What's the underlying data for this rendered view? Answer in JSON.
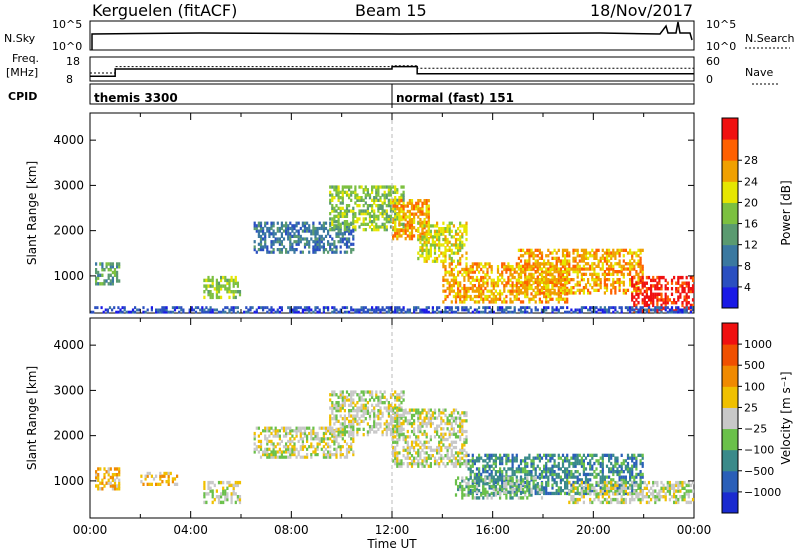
{
  "header": {
    "station": "Kerguelen (fitACF)",
    "beam": "Beam 15",
    "date": "18/Nov/2017"
  },
  "top_panels": {
    "nsky": {
      "left_label": "N.Sky",
      "ticks": [
        "10^5",
        "10^0"
      ],
      "right_label": "N.Search",
      "right_ticks": [
        "10^5",
        "10^0"
      ]
    },
    "freq": {
      "left_label_1": "Freq.",
      "left_label_2": "[MHz]",
      "ticks": [
        "18",
        "8"
      ],
      "right_label": "Nave",
      "right_ticks": [
        "60",
        "0"
      ],
      "series": [
        {
          "x": [
            0,
            1.0,
            1.0,
            12.0,
            12.0,
            13.0,
            13.0,
            24.0
          ],
          "y": [
            10,
            10,
            13,
            13,
            14,
            14,
            11,
            11
          ]
        }
      ],
      "nave_series": [
        {
          "x": [
            0,
            1.0,
            1.0,
            12.0,
            12.0,
            13.0,
            13.0,
            24.0
          ],
          "y": [
            20,
            20,
            36,
            36,
            38,
            38,
            32,
            32
          ]
        }
      ]
    },
    "cpid": {
      "label": "CPID",
      "segments": [
        {
          "start": 0,
          "label": "themis 3300"
        },
        {
          "start": 12.0,
          "label": "normal (fast) 151"
        }
      ]
    }
  },
  "chart_data": [
    {
      "type": "heatmap",
      "quantity": "power",
      "ylabel": "Slant Range [km]",
      "xlim": [
        0,
        24
      ],
      "ylim": [
        180,
        4600
      ],
      "yticks": [
        1000,
        2000,
        3000,
        4000
      ],
      "colorbar": {
        "label": "Power [dB]",
        "ticks": [
          "4",
          "8",
          "12",
          "16",
          "20",
          "24",
          "28"
        ],
        "colors": [
          "#1a1ae6",
          "#2a4fc0",
          "#3a78a0",
          "#5a9a70",
          "#7cc040",
          "#e6e600",
          "#f0a000",
          "#ff6000",
          "#f01010"
        ]
      },
      "regions": [
        {
          "t0": 0.2,
          "t1": 1.2,
          "r0": 800,
          "r1": 1300,
          "level": 3
        },
        {
          "t0": 4.5,
          "t1": 6.0,
          "r0": 500,
          "r1": 1000,
          "level": 4
        },
        {
          "t0": 6.5,
          "t1": 10.5,
          "r0": 1500,
          "r1": 2200,
          "level": 2
        },
        {
          "t0": 9.5,
          "t1": 12.5,
          "r0": 2000,
          "r1": 3000,
          "level": 4
        },
        {
          "t0": 12.0,
          "t1": 13.5,
          "r0": 1800,
          "r1": 2700,
          "level": 6
        },
        {
          "t0": 13.0,
          "t1": 15.0,
          "r0": 1300,
          "r1": 2200,
          "level": 5
        },
        {
          "t0": 14.0,
          "t1": 19.0,
          "r0": 400,
          "r1": 1300,
          "level": 6
        },
        {
          "t0": 17.0,
          "t1": 22.0,
          "r0": 600,
          "r1": 1600,
          "level": 6
        },
        {
          "t0": 21.5,
          "t1": 24.0,
          "r0": 200,
          "r1": 1000,
          "level": 8
        },
        {
          "t0": 0.0,
          "t1": 24.0,
          "r0": 180,
          "r1": 330,
          "level": 1
        }
      ]
    },
    {
      "type": "heatmap",
      "quantity": "velocity",
      "ylabel": "Slant Range [km]",
      "xlabel": "Time UT",
      "xlim": [
        0,
        24
      ],
      "ylim": [
        180,
        4600
      ],
      "yticks": [
        1000,
        2000,
        3000,
        4000
      ],
      "xticks": [
        "00:00",
        "04:00",
        "08:00",
        "12:00",
        "16:00",
        "20:00",
        "00:00"
      ],
      "colorbar": {
        "label": "Velocity [m s⁻¹]",
        "ticks": [
          "1000",
          "500",
          "100",
          "25",
          "−25",
          "−100",
          "−500",
          "−1000"
        ],
        "colors": [
          "#1a2ad0",
          "#2a5fb8",
          "#3a8a8a",
          "#6ac04a",
          "#c8c8c8",
          "#f0c000",
          "#f08a00",
          "#f05000",
          "#f01010"
        ]
      },
      "regions": [
        {
          "t0": 0.2,
          "t1": 1.2,
          "r0": 800,
          "r1": 1300,
          "level": 5
        },
        {
          "t0": 2.0,
          "t1": 3.5,
          "r0": 900,
          "r1": 1200,
          "level": 5
        },
        {
          "t0": 4.5,
          "t1": 6.0,
          "r0": 500,
          "r1": 1000,
          "level": 4
        },
        {
          "t0": 6.5,
          "t1": 10.5,
          "r0": 1500,
          "r1": 2200,
          "level": 4
        },
        {
          "t0": 9.5,
          "t1": 12.5,
          "r0": 2000,
          "r1": 3000,
          "level": 4
        },
        {
          "t0": 12.0,
          "t1": 15.0,
          "r0": 1300,
          "r1": 2600,
          "level": 4
        },
        {
          "t0": 15.0,
          "t1": 22.0,
          "r0": 700,
          "r1": 1600,
          "level": 2
        },
        {
          "t0": 14.5,
          "t1": 18.0,
          "r0": 600,
          "r1": 1100,
          "level": 3
        },
        {
          "t0": 19.0,
          "t1": 24.0,
          "r0": 500,
          "r1": 1000,
          "level": 4
        }
      ]
    }
  ]
}
